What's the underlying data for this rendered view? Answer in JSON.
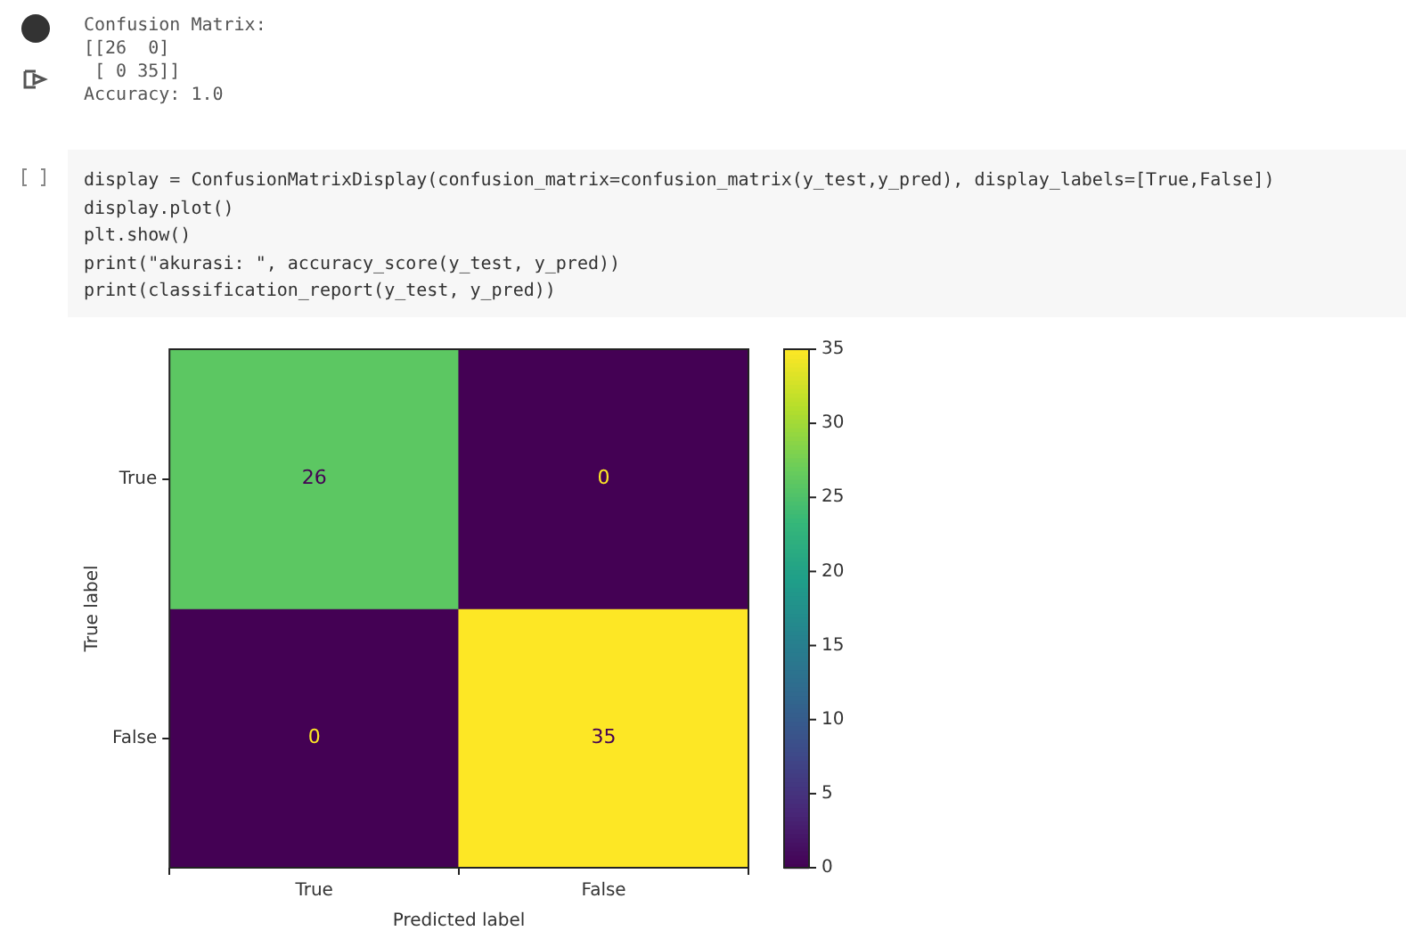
{
  "chart_data": {
    "type": "heatmap",
    "xlabel": "Predicted label",
    "ylabel": "True label",
    "categories": [
      "True",
      "False"
    ],
    "y_categories": [
      "True",
      "False"
    ],
    "cells": [
      [
        26,
        0
      ],
      [
        0,
        35
      ]
    ],
    "clim": [
      0,
      35
    ],
    "cticks": [
      0,
      5,
      10,
      15,
      20,
      25,
      30,
      35
    ],
    "data_labels": true,
    "annotations": [
      "Confusion Matrix:",
      "[[26  0]",
      " [ 0 35]]",
      "Accuracy: 1.0",
      "display = ConfusionMatrixDisplay(confusion_matrix=confusion_matrix(y_test,y_pred), display_labels=[True,False])",
      "display.plot()",
      "plt.show()",
      "print(\"akurasi: \", accuracy_score(y_test, y_pred))",
      "print(classification_report(y_test, y_pred))"
    ]
  }
}
